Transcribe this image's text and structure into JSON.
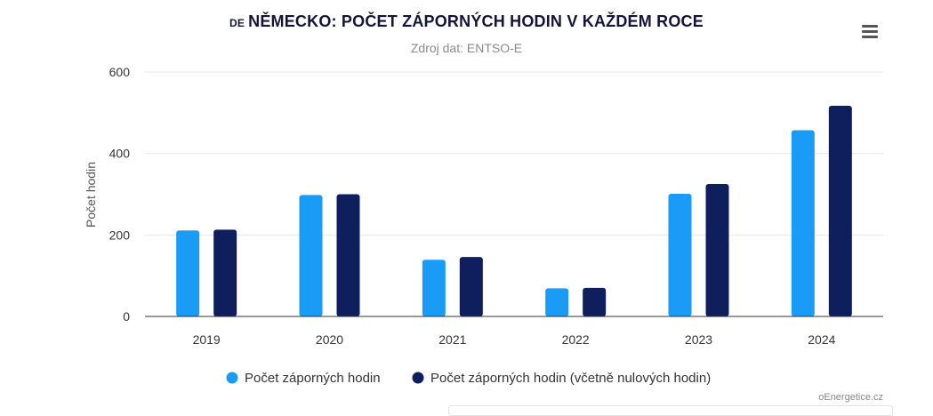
{
  "header": {
    "title_prefix": "DE",
    "title": "NĚMECKO: POČET ZÁPORNÝCH HODIN V KAŽDÉM ROCE",
    "subtitle": "Zdroj dat: ENTSO-E",
    "menu_icon": "hamburger-menu-icon"
  },
  "credit": "oEnergetice.cz",
  "colors": {
    "series1": "#1a9bf5",
    "series2": "#0f1f5e",
    "grid": "#e6e6e6",
    "axis": "#333333",
    "text": "#333333"
  },
  "chart_data": {
    "type": "bar",
    "title": "NĚMECKO: POČET ZÁPORNÝCH HODIN V KAŽDÉM ROCE",
    "subtitle": "Zdroj dat: ENTSO-E",
    "xlabel": "",
    "ylabel": "Počet hodin",
    "ylim": [
      0,
      600
    ],
    "yticks": [
      0,
      200,
      400,
      600
    ],
    "categories": [
      "2019",
      "2020",
      "2021",
      "2022",
      "2023",
      "2024"
    ],
    "series": [
      {
        "name": "Počet záporných hodin",
        "values": [
          211,
          298,
          139,
          69,
          301,
          457
        ]
      },
      {
        "name": "Počet záporných hodin (včetně nulových hodin)",
        "values": [
          213,
          300,
          146,
          70,
          325,
          517
        ]
      }
    ],
    "grid": true,
    "legend": "bottom-center"
  }
}
